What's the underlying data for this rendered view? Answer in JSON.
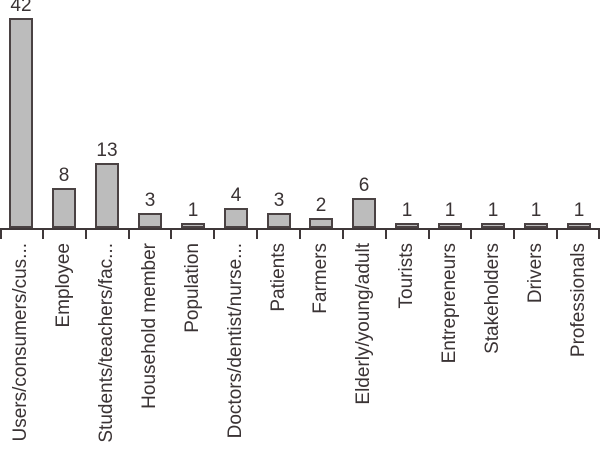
{
  "chart_data": {
    "type": "bar",
    "title": "",
    "xlabel": "",
    "ylabel": "",
    "categories": [
      "Users/consumers/cus...",
      "Employee",
      "Students/teachers/fac...",
      "Household member",
      "Population",
      "Doctors/dentist/nurse...",
      "Patients",
      "Farmers",
      "Elderly/young/adult",
      "Tourists",
      "Entrepreneurs",
      "Stakeholders",
      "Drivers",
      "Professionals"
    ],
    "values": [
      42,
      8,
      13,
      3,
      1,
      4,
      3,
      2,
      6,
      1,
      1,
      1,
      1,
      1
    ],
    "value_labels_shown": true,
    "ylim": [
      0,
      45
    ],
    "grid": false,
    "legend": null,
    "y_axis_shown": false,
    "colors": {
      "bar_fill": "#bcbcbc",
      "bar_border": "#4a4243",
      "axis": "#3f3839",
      "text": "#3a3334",
      "background": "#ffffff"
    }
  }
}
